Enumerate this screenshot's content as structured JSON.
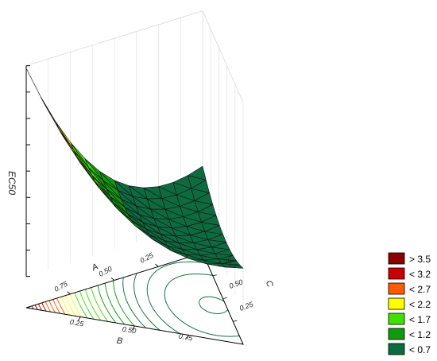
{
  "chart_data": {
    "type": "surface-3d-ternary",
    "zlabel": "EC50",
    "axes": {
      "A": {
        "label": "A",
        "ticks": [
          "0.75",
          "0.50",
          "0.25"
        ]
      },
      "B": {
        "label": "B",
        "ticks": [
          "0.25",
          "0.50",
          "0.75"
        ]
      },
      "C": {
        "label": "C",
        "ticks": [
          "0.75",
          "0.50",
          "0.25"
        ]
      }
    },
    "zlim": [
      0,
      4
    ],
    "grid": true,
    "legend": {
      "position": "bottom-right",
      "entries": [
        {
          "label": "> 3.5",
          "color": "#8b0000"
        },
        {
          "label": "< 3.2",
          "color": "#c80000"
        },
        {
          "label": "< 2.7",
          "color": "#ff5a00"
        },
        {
          "label": "< 2.2",
          "color": "#ffff00"
        },
        {
          "label": "< 1.7",
          "color": "#40e000"
        },
        {
          "label": "< 1.2",
          "color": "#109a10"
        },
        {
          "label": "< 0.7",
          "color": "#0e6b40"
        }
      ]
    }
  }
}
